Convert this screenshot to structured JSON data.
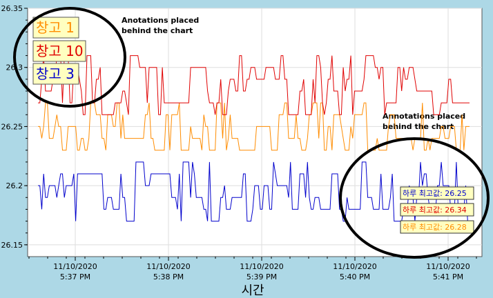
{
  "chart_data": {
    "type": "line",
    "title": "",
    "xlabel": "시간",
    "ylabel": "",
    "ylim": [
      26.14,
      26.35
    ],
    "y_ticks": [
      "26.15",
      "26.2",
      "26.25",
      "26.3",
      "26.35"
    ],
    "x_ticks": [
      {
        "date": "11/10/2020",
        "time": "5:37 PM"
      },
      {
        "date": "11/10/2020",
        "time": "5:38 PM"
      },
      {
        "date": "11/10/2020",
        "time": "5:39 PM"
      },
      {
        "date": "11/10/2020",
        "time": "5:40 PM"
      },
      {
        "date": "11/10/2020",
        "time": "5:41 PM"
      }
    ],
    "grid": true,
    "legend_position": "top-left",
    "series": [
      {
        "name": "창고 1",
        "color": "#FF8C00",
        "level": 26.25,
        "spread": 0.025,
        "low": 26.22,
        "high": 26.27,
        "seed": 7
      },
      {
        "name": "창고 10",
        "color": "#E00000",
        "level": 26.285,
        "spread": 0.03,
        "low": 26.24,
        "high": 26.34,
        "seed": 3
      },
      {
        "name": "창고 3",
        "color": "#0000CC",
        "level": 26.195,
        "spread": 0.025,
        "low": 26.15,
        "high": 26.24,
        "seed": 11
      }
    ],
    "annotations": [
      {
        "line1": "Anotations placed",
        "line2": "behind the chart"
      },
      {
        "line1": "Annotations placed",
        "line2": "behind the chart"
      }
    ],
    "value_boxes": [
      {
        "text": "하루 최고값: 26.25",
        "color": "#0000CC"
      },
      {
        "text": "하루 최고값: 26.34",
        "color": "#E00000"
      },
      {
        "text": "하루 최고값: 26.28",
        "color": "#FF8C00"
      }
    ]
  }
}
